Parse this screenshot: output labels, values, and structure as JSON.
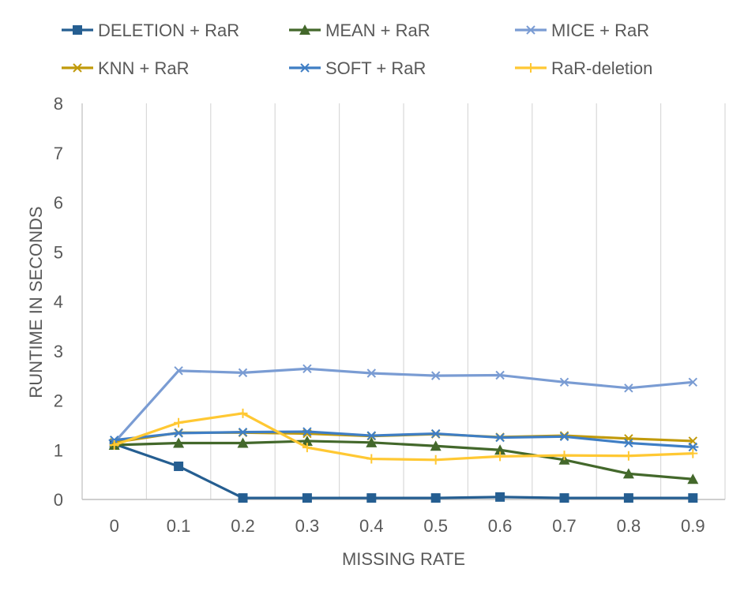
{
  "chart_data": {
    "type": "line",
    "title": "",
    "xlabel": "MISSING RATE",
    "ylabel": "RUNTIME IN SECONDS",
    "ylim": [
      0,
      8
    ],
    "y_ticks": [
      "0",
      "1",
      "2",
      "3",
      "4",
      "5",
      "6",
      "7",
      "8"
    ],
    "categories": [
      "0",
      "0.1",
      "0.2",
      "0.3",
      "0.4",
      "0.5",
      "0.6",
      "0.7",
      "0.8",
      "0.9"
    ],
    "grid": "vertical",
    "legend_position": "top",
    "series": [
      {
        "name": "DELETION + RaR",
        "color": "#255E91",
        "marker": "square",
        "values": [
          1.12,
          0.67,
          0.03,
          0.03,
          0.03,
          0.03,
          0.05,
          0.03,
          0.03,
          0.03
        ]
      },
      {
        "name": "MEAN + RaR",
        "color": "#43682B",
        "marker": "triangle",
        "values": [
          1.1,
          1.14,
          1.14,
          1.18,
          1.15,
          1.08,
          1.0,
          0.8,
          0.52,
          0.41
        ]
      },
      {
        "name": "MICE + RaR",
        "color": "#7A9CD3",
        "marker": "x",
        "values": [
          1.15,
          2.6,
          2.56,
          2.64,
          2.55,
          2.5,
          2.51,
          2.37,
          2.25,
          2.37
        ]
      },
      {
        "name": "KNN + RaR",
        "color": "#C19A0B",
        "marker": "x",
        "values": [
          1.15,
          1.35,
          1.35,
          1.33,
          1.28,
          1.32,
          1.26,
          1.29,
          1.23,
          1.18
        ]
      },
      {
        "name": "SOFT + RaR",
        "color": "#3F7EC4",
        "marker": "asterisk",
        "values": [
          1.2,
          1.34,
          1.36,
          1.37,
          1.29,
          1.33,
          1.25,
          1.27,
          1.14,
          1.06
        ]
      },
      {
        "name": "RaR-deletion",
        "color": "#FFC833",
        "marker": "plus",
        "values": [
          1.1,
          1.55,
          1.74,
          1.05,
          0.82,
          0.8,
          0.87,
          0.89,
          0.88,
          0.93
        ]
      }
    ]
  }
}
